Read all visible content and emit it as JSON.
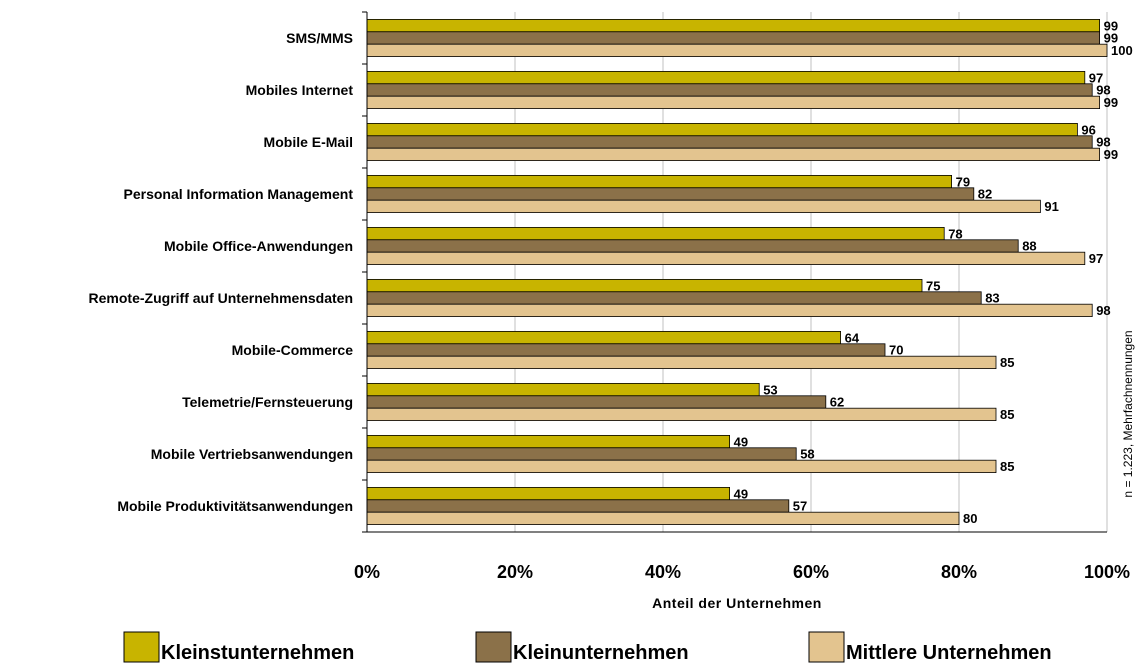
{
  "chart_data": {
    "type": "bar",
    "orientation": "horizontal",
    "categories": [
      "SMS/MMS",
      "Mobiles Internet",
      "Mobile E-Mail",
      "Personal Information Management",
      "Mobile Office-Anwendungen",
      "Remote-Zugriff auf Unternehmensdaten",
      "Mobile-Commerce",
      "Telemetrie/Fernsteuerung",
      "Mobile Vertriebsanwendungen",
      "Mobile Produktivitätsanwendungen"
    ],
    "series": [
      {
        "name": "Kleinstunternehmen",
        "color": "#c8b400",
        "values": [
          99,
          97,
          96,
          79,
          78,
          75,
          64,
          53,
          49,
          49
        ]
      },
      {
        "name": "Kleinunternehmen",
        "color": "#8b7149",
        "values": [
          99,
          98,
          98,
          82,
          88,
          83,
          70,
          62,
          58,
          57
        ]
      },
      {
        "name": "Mittlere Unternehmen",
        "color": "#e3c48f",
        "values": [
          100,
          99,
          99,
          91,
          97,
          98,
          85,
          85,
          85,
          80
        ]
      }
    ],
    "xlim": [
      0,
      100
    ],
    "xticks": [
      "0%",
      "20%",
      "40%",
      "60%",
      "80%",
      "100%"
    ],
    "xlabel": "Anteil der Unternehmen",
    "note": "n = 1.223, Mehrfachnennungen",
    "grid": true,
    "legend_position": "bottom"
  }
}
